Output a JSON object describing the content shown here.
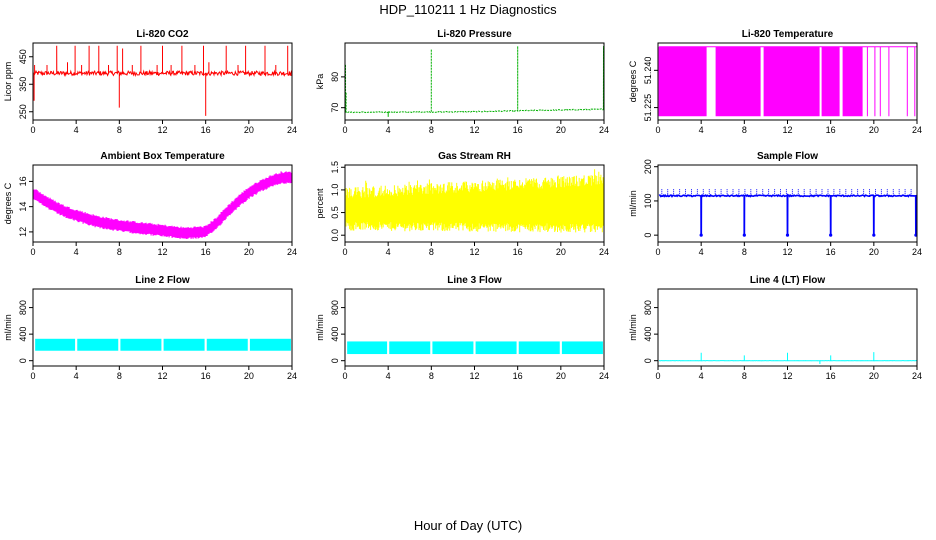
{
  "figure": {
    "title": "HDP_110211  1 Hz Diagnostics",
    "xlabel": "Hour of Day (UTC)"
  },
  "chart_data": [
    {
      "type": "line",
      "title": "Li-820 CO2",
      "ylabel": "Licor ppm",
      "color": "#ff0000",
      "xlim": [
        0,
        24
      ],
      "ylim": [
        220,
        500
      ],
      "xticks": [
        0,
        4,
        8,
        12,
        16,
        20,
        24
      ],
      "yticks": [
        250,
        350,
        450
      ],
      "series": [
        {
          "pattern": "baseline",
          "base": 390,
          "noise": 8,
          "start": 0.1,
          "end": 24.0,
          "events": [
            {
              "x": 0.1,
              "y": 290
            },
            {
              "x": 0.15,
              "y": 420
            },
            {
              "x": 1.3,
              "y": 420
            },
            {
              "x": 2.2,
              "y": 490
            },
            {
              "x": 3.2,
              "y": 430
            },
            {
              "x": 3.9,
              "y": 490
            },
            {
              "x": 4.5,
              "y": 420
            },
            {
              "x": 5.2,
              "y": 490
            },
            {
              "x": 6.1,
              "y": 490
            },
            {
              "x": 7.0,
              "y": 420
            },
            {
              "x": 7.8,
              "y": 490
            },
            {
              "x": 8.0,
              "y": 265
            },
            {
              "x": 8.3,
              "y": 480
            },
            {
              "x": 9.2,
              "y": 420
            },
            {
              "x": 10.0,
              "y": 490
            },
            {
              "x": 11.5,
              "y": 420
            },
            {
              "x": 12.0,
              "y": 490
            },
            {
              "x": 12.8,
              "y": 420
            },
            {
              "x": 13.8,
              "y": 490
            },
            {
              "x": 15.0,
              "y": 420
            },
            {
              "x": 15.8,
              "y": 490
            },
            {
              "x": 16.0,
              "y": 235
            },
            {
              "x": 16.3,
              "y": 430
            },
            {
              "x": 17.9,
              "y": 490
            },
            {
              "x": 19.0,
              "y": 420
            },
            {
              "x": 19.7,
              "y": 490
            },
            {
              "x": 21.5,
              "y": 490
            },
            {
              "x": 22.5,
              "y": 420
            },
            {
              "x": 23.6,
              "y": 490
            },
            {
              "x": 23.9,
              "y": 380
            }
          ]
        }
      ]
    },
    {
      "type": "line",
      "title": "Li-820 Pressure",
      "ylabel": "kPa",
      "color": "#00b000",
      "xlim": [
        0,
        24
      ],
      "ylim": [
        66,
        91
      ],
      "xticks": [
        0,
        4,
        8,
        12,
        16,
        20,
        24
      ],
      "yticks": [
        70,
        80
      ],
      "series": [
        {
          "pattern": "drift",
          "points": [
            [
              0.1,
              68.5
            ],
            [
              8,
              68.6
            ],
            [
              12,
              68.7
            ],
            [
              16,
              69.0
            ],
            [
              24,
              69.5
            ]
          ],
          "noise": 0.3,
          "events": [
            {
              "x": 0.05,
              "y": 84
            },
            {
              "x": 0.1,
              "y": 75
            },
            {
              "x": 4.0,
              "y": 67
            },
            {
              "x": 8.0,
              "y": 89
            },
            {
              "x": 16.0,
              "y": 90
            },
            {
              "x": 23.95,
              "y": 90
            }
          ]
        }
      ]
    },
    {
      "type": "line",
      "title": "Li-820 Temperature",
      "ylabel": "degrees C",
      "color": "#ff00ff",
      "xlim": [
        0,
        24
      ],
      "ylim": [
        51.22,
        51.251
      ],
      "xticks": [
        0,
        4,
        8,
        12,
        16,
        20,
        24
      ],
      "yticks": [
        51.225,
        51.24
      ],
      "ytick_labels": [
        "51.225",
        "51.240"
      ],
      "series": [
        {
          "pattern": "toggle",
          "low": 51.2215,
          "high": 51.2495,
          "start": 0.1,
          "end": 24.0,
          "dense_end": 19.0,
          "gaps": [
            [
              4.5,
              5.3
            ],
            [
              9.5,
              9.8
            ],
            [
              15.0,
              15.2
            ],
            [
              16.8,
              17.1
            ]
          ],
          "sparse": [
            19.4,
            20.1,
            20.6,
            21.4,
            23.1,
            23.8
          ]
        }
      ]
    },
    {
      "type": "line",
      "title": "Ambient Box Temperature",
      "ylabel": "degrees C",
      "color": "#ff00ff",
      "xlim": [
        0,
        24
      ],
      "ylim": [
        11.2,
        17.3
      ],
      "xticks": [
        0,
        4,
        8,
        12,
        16,
        20,
        24
      ],
      "yticks": [
        12,
        14,
        16
      ],
      "series": [
        {
          "pattern": "band",
          "width": 0.7,
          "points": [
            [
              0.1,
              15.0
            ],
            [
              1,
              14.5
            ],
            [
              2,
              14.0
            ],
            [
              3,
              13.6
            ],
            [
              4,
              13.3
            ],
            [
              6,
              12.8
            ],
            [
              8,
              12.5
            ],
            [
              10,
              12.3
            ],
            [
              12,
              12.1
            ],
            [
              14,
              11.9
            ],
            [
              16,
              12.0
            ],
            [
              17,
              12.7
            ],
            [
              18,
              13.6
            ],
            [
              19,
              14.4
            ],
            [
              20,
              15.1
            ],
            [
              21,
              15.6
            ],
            [
              22,
              16.0
            ],
            [
              23,
              16.3
            ],
            [
              24,
              16.3
            ]
          ]
        }
      ]
    },
    {
      "type": "line",
      "title": "Gas Stream RH",
      "ylabel": "percent",
      "color": "#ffff00",
      "xlim": [
        0,
        24
      ],
      "ylim": [
        -0.15,
        1.55
      ],
      "xticks": [
        0,
        4,
        8,
        12,
        16,
        20,
        24
      ],
      "yticks": [
        0.0,
        0.5,
        1.0,
        1.5
      ],
      "ytick_labels": [
        "0.0",
        "0.5",
        "1.0",
        "1.5"
      ],
      "series": [
        {
          "pattern": "noiseband",
          "start": 0.1,
          "end": 24.0,
          "low": [
            [
              0,
              0.1
            ],
            [
              24,
              0.05
            ]
          ],
          "high": [
            [
              0,
              1.05
            ],
            [
              12,
              1.2
            ],
            [
              24,
              1.35
            ]
          ]
        }
      ]
    },
    {
      "type": "line",
      "title": "Sample Flow",
      "ylabel": "ml/min",
      "color": "#0000ff",
      "xlim": [
        0,
        24
      ],
      "ylim": [
        -20,
        205
      ],
      "xticks": [
        0,
        4,
        8,
        12,
        16,
        20,
        24
      ],
      "yticks": [
        0,
        100,
        200
      ],
      "series": [
        {
          "pattern": "flow",
          "base": 115,
          "upper": 135,
          "start": 0.1,
          "end": 24.0,
          "dips": [
            {
              "x": 4.0,
              "y": 0
            },
            {
              "x": 8.0,
              "y": 0
            },
            {
              "x": 12.0,
              "y": 0
            },
            {
              "x": 16.0,
              "y": 0
            },
            {
              "x": 20.0,
              "y": 0
            },
            {
              "x": 23.9,
              "y": 0
            }
          ]
        }
      ]
    },
    {
      "type": "line",
      "title": "Line 2 Flow",
      "ylabel": "ml/min",
      "color": "#00ffff",
      "xlim": [
        0,
        24
      ],
      "ylim": [
        -80,
        1080
      ],
      "xticks": [
        0,
        4,
        8,
        12,
        16,
        20,
        24
      ],
      "yticks": [
        0,
        400,
        800
      ],
      "series": [
        {
          "pattern": "blocks",
          "low": 150,
          "high": 330,
          "blocks": [
            [
              0.2,
              3.9
            ],
            [
              4.1,
              7.9
            ],
            [
              8.1,
              11.9
            ],
            [
              12.1,
              15.9
            ],
            [
              16.1,
              19.9
            ],
            [
              20.1,
              23.9
            ]
          ]
        }
      ]
    },
    {
      "type": "line",
      "title": "Line 3 Flow",
      "ylabel": "ml/min",
      "color": "#00ffff",
      "xlim": [
        0,
        24
      ],
      "ylim": [
        -80,
        1080
      ],
      "xticks": [
        0,
        4,
        8,
        12,
        16,
        20,
        24
      ],
      "yticks": [
        0,
        400,
        800
      ],
      "series": [
        {
          "pattern": "blocks",
          "low": 100,
          "high": 290,
          "blocks": [
            [
              0.2,
              3.9
            ],
            [
              4.1,
              7.9
            ],
            [
              8.1,
              11.9
            ],
            [
              12.1,
              15.9
            ],
            [
              16.1,
              19.9
            ],
            [
              20.1,
              23.9
            ]
          ]
        }
      ]
    },
    {
      "type": "line",
      "title": "Line 4 (LT) Flow",
      "ylabel": "ml/min",
      "color": "#00ffff",
      "xlim": [
        0,
        24
      ],
      "ylim": [
        -80,
        1080
      ],
      "xticks": [
        0,
        4,
        8,
        12,
        16,
        20,
        24
      ],
      "yticks": [
        0,
        400,
        800
      ],
      "series": [
        {
          "pattern": "baseline",
          "base": 0,
          "noise": 2,
          "start": 0.1,
          "end": 24.0,
          "events": [
            {
              "x": 4.0,
              "y": 120
            },
            {
              "x": 8.0,
              "y": 80
            },
            {
              "x": 12.0,
              "y": 120
            },
            {
              "x": 15.0,
              "y": -50
            },
            {
              "x": 16.0,
              "y": 80
            },
            {
              "x": 20.0,
              "y": 130
            },
            {
              "x": 24.0,
              "y": 80
            }
          ]
        }
      ]
    }
  ]
}
